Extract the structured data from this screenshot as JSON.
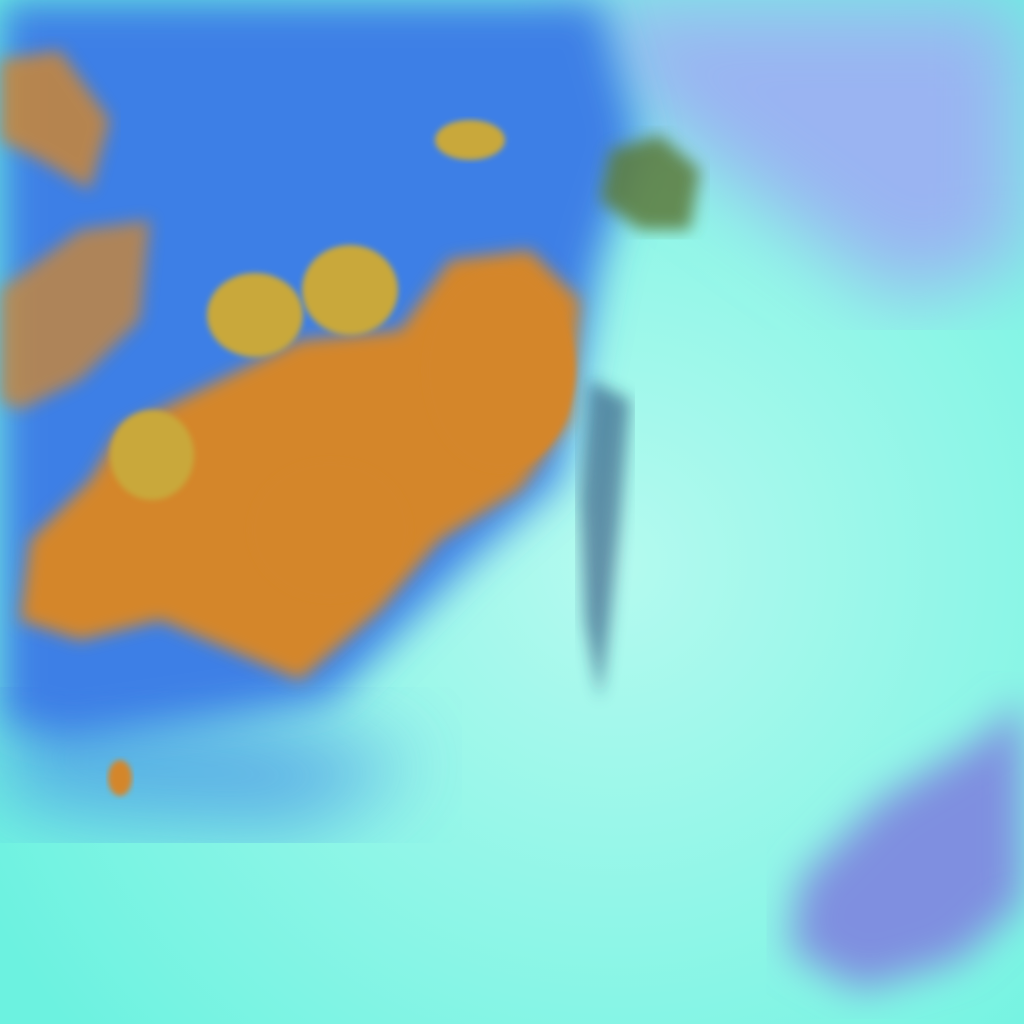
{
  "image": {
    "palette": {
      "sea_cyan": "#6cf2e0",
      "sea_light": "#b4faef",
      "deep_blue": "#3d7fe6",
      "haze_lavender": "#9ab4f2",
      "storm_orange": "#d4862c",
      "storm_olive": "#c9a83a",
      "patch_purple": "#7f8fe0",
      "shadow_navy": "#1f3b6e"
    }
  }
}
